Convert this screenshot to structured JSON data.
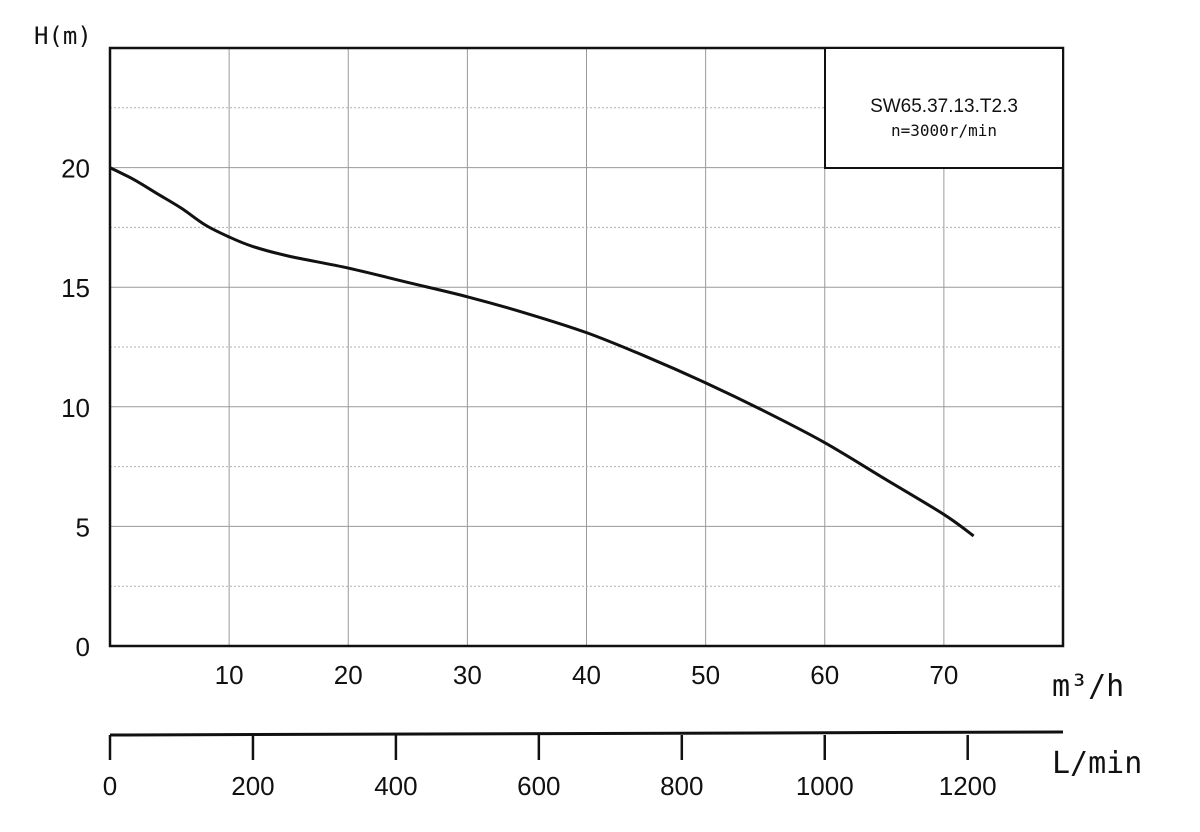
{
  "chart_data": {
    "type": "line",
    "ylabel": "H(m)",
    "xlabel": "m³/h",
    "xlabel_secondary": "L/min",
    "xlim": [
      0,
      80
    ],
    "ylim": [
      0,
      25
    ],
    "x_ticks": [
      10,
      20,
      30,
      40,
      50,
      60,
      70
    ],
    "y_ticks": [
      0,
      5,
      10,
      15,
      20
    ],
    "secondary_x_ticks": [
      0,
      200,
      400,
      600,
      800,
      1000,
      1200
    ],
    "grid": true,
    "legend": {
      "position": "top-right",
      "model": "SW65.37.13.T2.3",
      "speed": "n=3000r/min"
    },
    "series": [
      {
        "x": [
          0,
          2,
          4,
          6,
          8,
          10,
          12,
          15,
          20,
          25,
          30,
          35,
          40,
          45,
          50,
          55,
          60,
          65,
          70,
          72.5
        ],
        "y": [
          20,
          19.5,
          18.9,
          18.3,
          17.6,
          17.1,
          16.7,
          16.3,
          15.8,
          15.2,
          14.6,
          13.9,
          13.1,
          12.1,
          11.0,
          9.8,
          8.5,
          7.0,
          5.5,
          4.6
        ]
      }
    ]
  }
}
